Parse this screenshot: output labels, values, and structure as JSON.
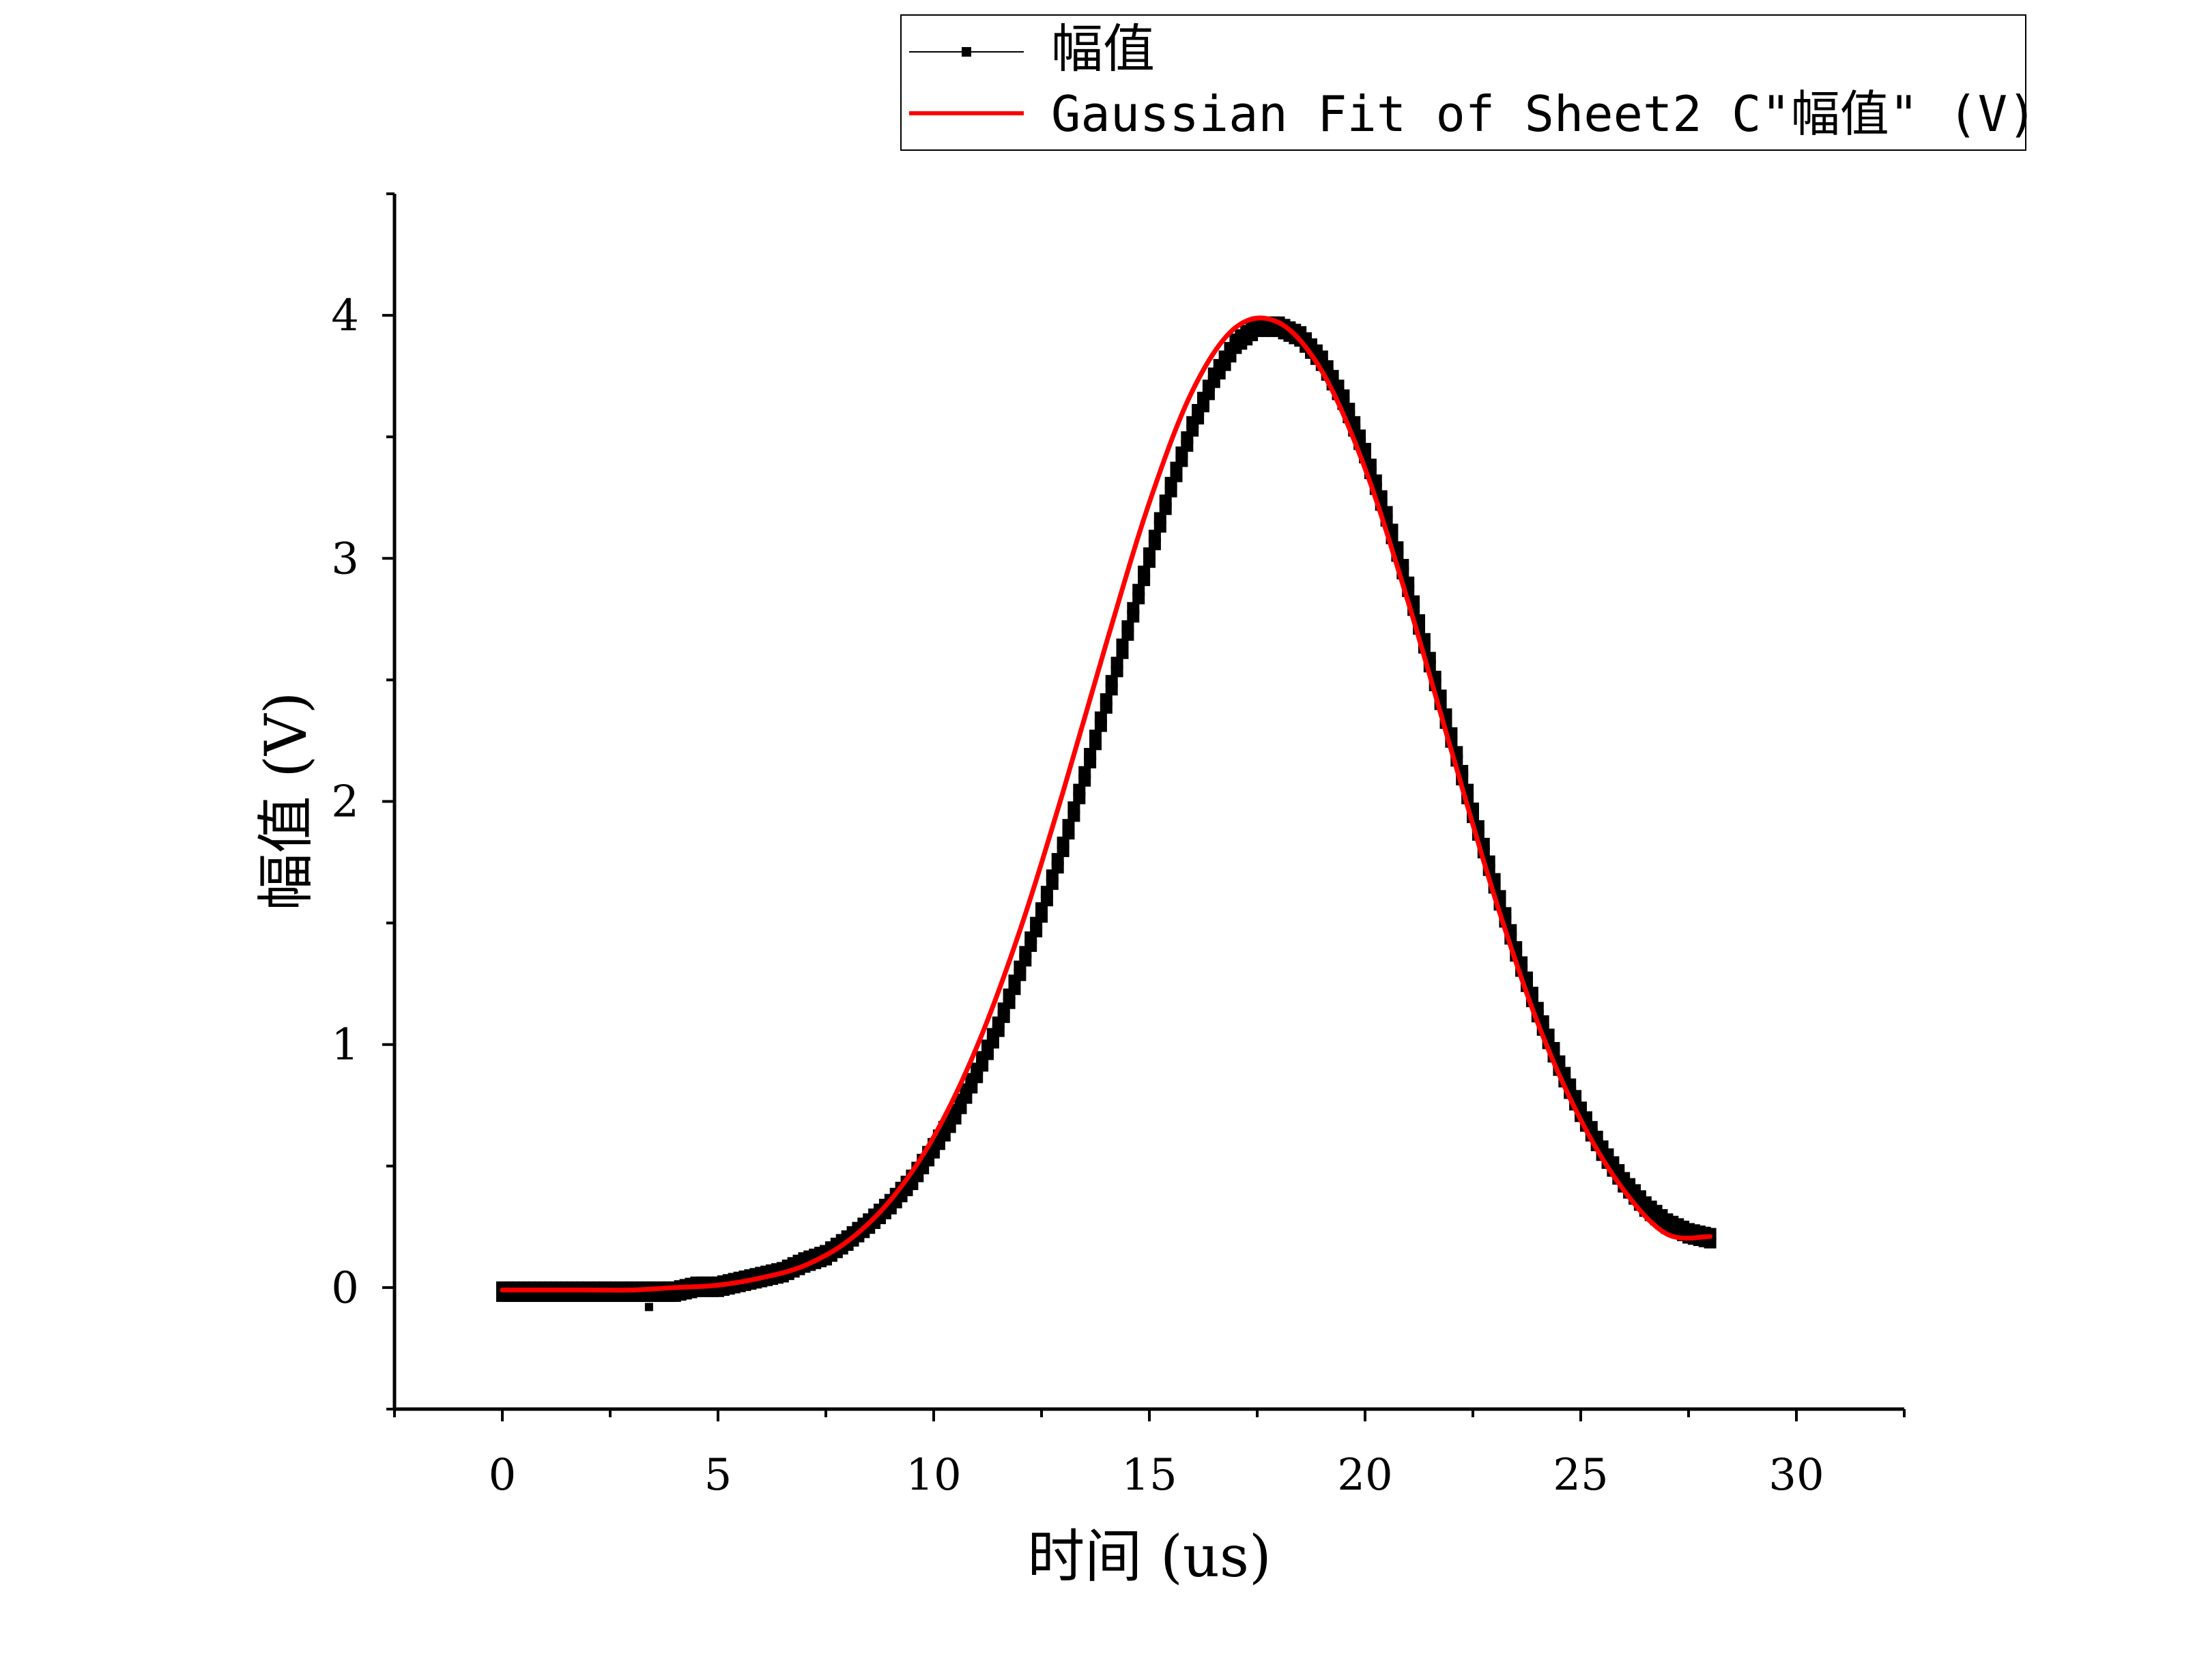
{
  "chart_data": {
    "type": "line",
    "xlabel": "时间 (us)",
    "ylabel": "幅值 (V)",
    "xlim": [
      -2.5,
      32.5
    ],
    "ylim": [
      -0.5,
      4.5
    ],
    "x_ticks": [
      0,
      5,
      10,
      15,
      20,
      25,
      30
    ],
    "x_tick_labels": [
      "0",
      "5",
      "10",
      "15",
      "20",
      "25",
      "30"
    ],
    "y_ticks": [
      0,
      1,
      2,
      3,
      4
    ],
    "y_tick_labels": [
      "0",
      "1",
      "2",
      "3",
      "4"
    ],
    "legend_placement": "top-right, above plot",
    "series": [
      {
        "name": "幅值",
        "style": "dense square markers",
        "color": "#000000",
        "x": [
          0,
          0.5,
          1,
          1.5,
          2,
          2.5,
          3,
          3.5,
          4,
          4.5,
          5,
          5.5,
          6,
          6.5,
          7,
          7.5,
          8,
          8.5,
          9,
          9.5,
          10,
          10.5,
          11,
          11.5,
          12,
          12.5,
          13,
          13.5,
          14,
          14.5,
          15,
          15.5,
          16,
          16.5,
          17,
          17.5,
          18,
          18.5,
          19,
          19.5,
          20,
          20.5,
          21,
          21.5,
          22,
          22.5,
          23,
          23.5,
          24,
          24.5,
          25,
          25.5,
          26,
          26.5,
          27,
          27.5,
          28
        ],
        "values": [
          0,
          0,
          0,
          0,
          0,
          0,
          0,
          0,
          0,
          0.02,
          0.02,
          0.04,
          0.06,
          0.08,
          0.12,
          0.15,
          0.21,
          0.28,
          0.36,
          0.46,
          0.59,
          0.73,
          0.9,
          1.09,
          1.32,
          1.56,
          1.83,
          2.12,
          2.42,
          2.72,
          3.02,
          3.31,
          3.56,
          3.76,
          3.9,
          3.97,
          3.97,
          3.93,
          3.83,
          3.67,
          3.45,
          3.19,
          2.9,
          2.59,
          2.28,
          1.97,
          1.68,
          1.4,
          1.15,
          0.93,
          0.74,
          0.58,
          0.45,
          0.35,
          0.28,
          0.24,
          0.22
        ]
      },
      {
        "name": "Gaussian Fit of Sheet2 C\"幅值\" (V)",
        "style": "line",
        "color": "#ff0000",
        "x": [
          0,
          1,
          2,
          3,
          4,
          5,
          6,
          7,
          8,
          9,
          10,
          11,
          12,
          13,
          14,
          15,
          16,
          17,
          18,
          19,
          20,
          21,
          22,
          23,
          24,
          25,
          26,
          27,
          28
        ],
        "values": [
          -0.01,
          -0.01,
          -0.01,
          -0.01,
          0.0,
          0.01,
          0.04,
          0.09,
          0.19,
          0.36,
          0.62,
          0.99,
          1.47,
          2.04,
          2.65,
          3.23,
          3.69,
          3.95,
          3.97,
          3.77,
          3.37,
          2.82,
          2.21,
          1.61,
          1.09,
          0.69,
          0.4,
          0.22,
          0.21
        ]
      }
    ]
  }
}
